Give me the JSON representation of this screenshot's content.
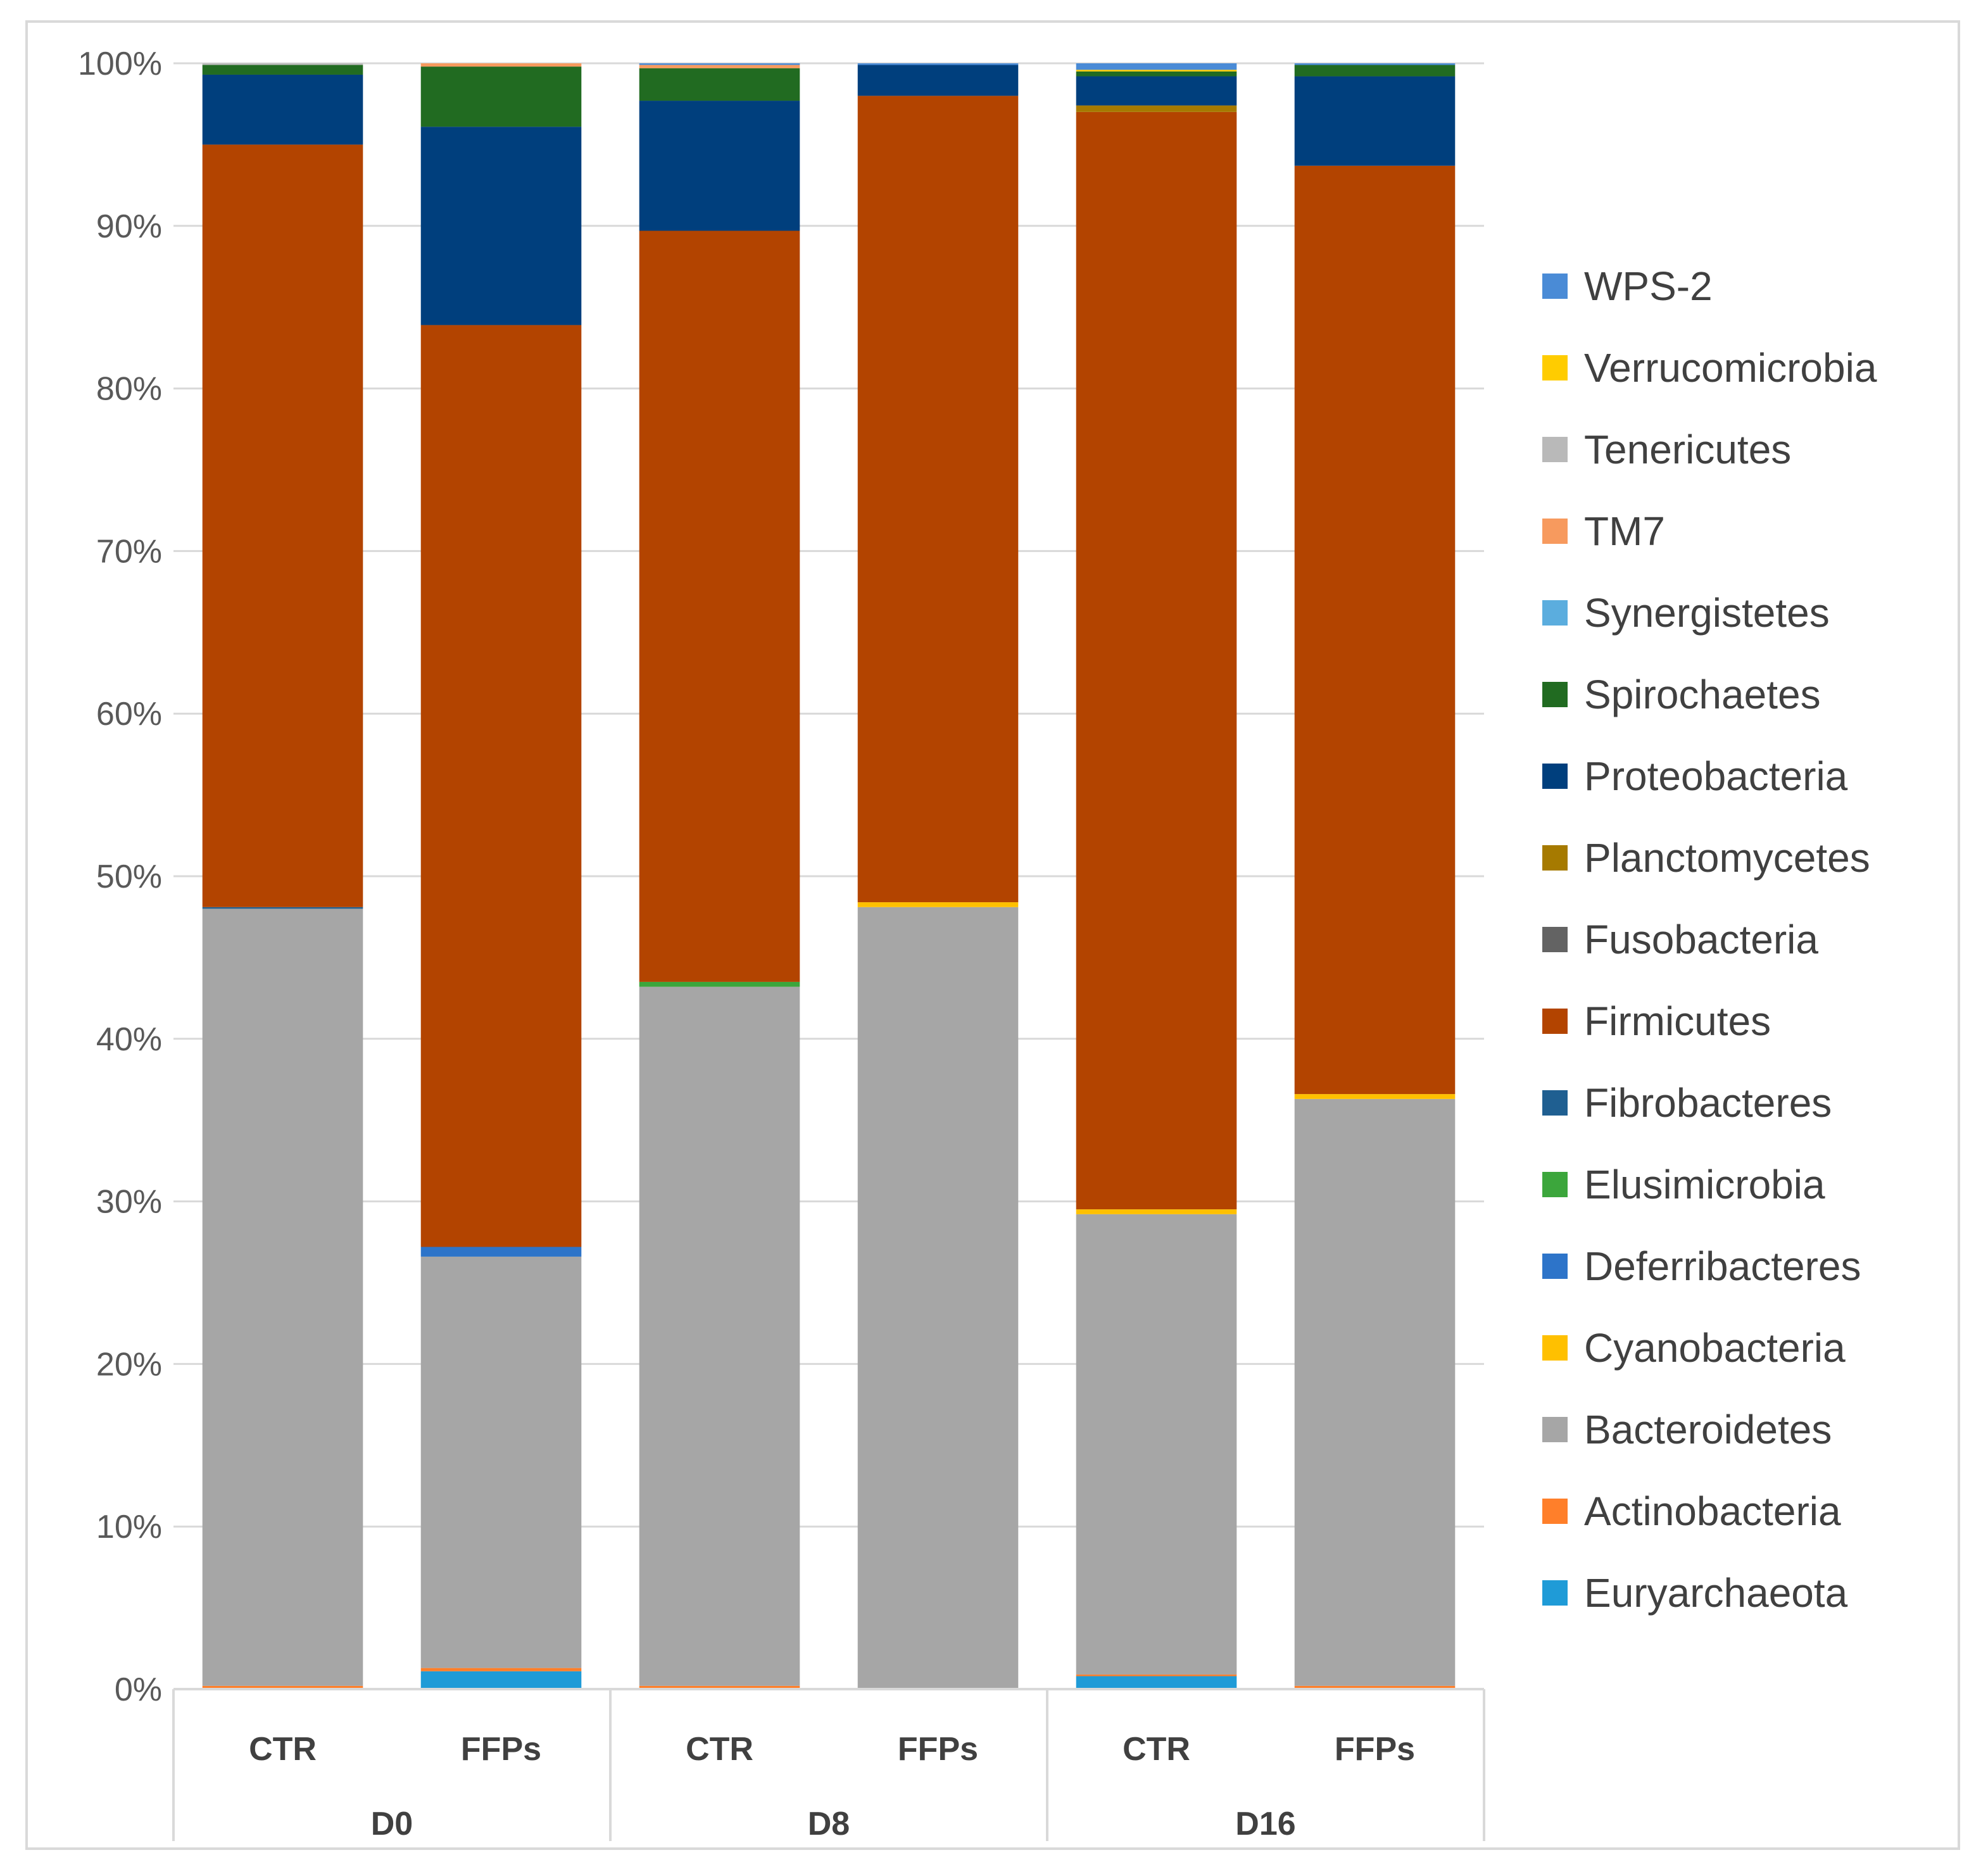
{
  "chart_data": {
    "type": "bar",
    "stacked": true,
    "normalized": true,
    "title": "",
    "xlabel": "",
    "ylabel": "",
    "ylim": [
      0,
      100
    ],
    "y_ticks": [
      "0%",
      "10%",
      "20%",
      "30%",
      "40%",
      "50%",
      "60%",
      "70%",
      "80%",
      "90%",
      "100%"
    ],
    "grid": true,
    "legend_position": "right",
    "groups": [
      {
        "label": "D0",
        "categories": [
          "CTR",
          "FFPs"
        ]
      },
      {
        "label": "D8",
        "categories": [
          "CTR",
          "FFPs"
        ]
      },
      {
        "label": "D16",
        "categories": [
          "CTR",
          "FFPs"
        ]
      }
    ],
    "series": [
      {
        "name": "Euryarchaeota",
        "color": "#1f9bd7",
        "values": [
          0.0,
          1.1,
          0.0,
          0.0,
          0.8,
          0.0
        ]
      },
      {
        "name": "Actinobacteria",
        "color": "#ff7f2a",
        "values": [
          0.2,
          0.2,
          0.2,
          0.0,
          0.1,
          0.2
        ]
      },
      {
        "name": "Bacteroidetes",
        "color": "#a6a6a6",
        "values": [
          47.8,
          25.3,
          43.0,
          48.1,
          28.4,
          36.1
        ]
      },
      {
        "name": "Cyanobacteria",
        "color": "#ffc000",
        "values": [
          0.0,
          0.0,
          0.0,
          0.3,
          0.3,
          0.3
        ]
      },
      {
        "name": "Deferribacteres",
        "color": "#2d74c9",
        "values": [
          0.0,
          0.6,
          0.0,
          0.0,
          0.0,
          0.0
        ]
      },
      {
        "name": "Elusimicrobia",
        "color": "#3ca63c",
        "values": [
          0.0,
          0.0,
          0.3,
          0.0,
          0.0,
          0.0
        ]
      },
      {
        "name": "Fibrobacteres",
        "color": "#1f5f91",
        "values": [
          0.1,
          0.0,
          0.0,
          0.0,
          0.0,
          0.0
        ]
      },
      {
        "name": "Firmicutes",
        "color": "#b34400",
        "values": [
          46.9,
          56.7,
          46.2,
          49.6,
          67.7,
          57.1
        ]
      },
      {
        "name": "Fusobacteria",
        "color": "#636363",
        "values": [
          0.0,
          0.0,
          0.0,
          0.0,
          0.0,
          0.0
        ]
      },
      {
        "name": "Planctomycetes",
        "color": "#a67a00",
        "values": [
          0.0,
          0.0,
          0.0,
          0.0,
          0.4,
          0.0
        ]
      },
      {
        "name": "Proteobacteria",
        "color": "#003f7d",
        "values": [
          4.3,
          12.2,
          8.0,
          1.9,
          1.8,
          5.5
        ]
      },
      {
        "name": "Spirochaetes",
        "color": "#216b21",
        "values": [
          0.6,
          3.7,
          2.0,
          0.0,
          0.3,
          0.7
        ]
      },
      {
        "name": "Synergistetes",
        "color": "#5badde",
        "values": [
          0.0,
          0.0,
          0.0,
          0.0,
          0.0,
          0.0
        ]
      },
      {
        "name": "TM7",
        "color": "#f79a5e",
        "values": [
          0.0,
          0.2,
          0.2,
          0.0,
          0.0,
          0.0
        ]
      },
      {
        "name": "Tenericutes",
        "color": "#b9b9b9",
        "values": [
          0.1,
          0.0,
          0.0,
          0.0,
          0.0,
          0.0
        ]
      },
      {
        "name": "Verrucomicrobia",
        "color": "#ffcc00",
        "values": [
          0.0,
          0.0,
          0.0,
          0.0,
          0.1,
          0.0
        ]
      },
      {
        "name": "WPS-2",
        "color": "#4a8bd6",
        "values": [
          0.0,
          0.0,
          0.1,
          0.1,
          0.4,
          0.1
        ]
      }
    ]
  }
}
